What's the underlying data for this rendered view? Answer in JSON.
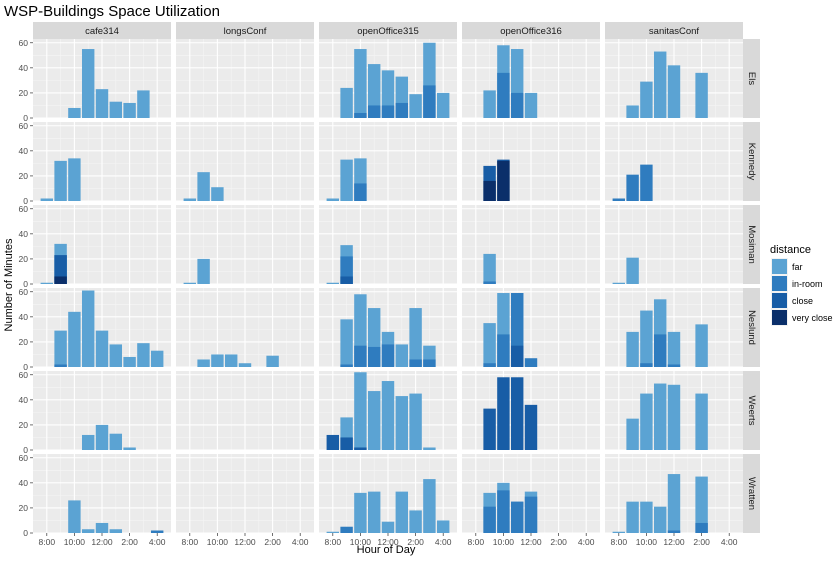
{
  "chart_data": {
    "type": "bar",
    "title": "WSP-Buildings Space Utilization",
    "xlabel": "Hour of Day",
    "ylabel": "Number of Minutes",
    "xlim": [
      7,
      17
    ],
    "ylim": [
      0,
      63
    ],
    "x_ticks": [
      8,
      10,
      12,
      14,
      16
    ],
    "x_tick_labels": [
      "8:00",
      "10:00",
      "12:00",
      "2:00",
      "4:00"
    ],
    "y_ticks": [
      0,
      20,
      40,
      60
    ],
    "y_tick_labels": [
      "0",
      "20",
      "40",
      "60"
    ],
    "facet_columns": [
      "cafe314",
      "longsConf",
      "openOffice315",
      "openOffice316",
      "sanitasConf"
    ],
    "facet_rows": [
      "Els",
      "Kennedy",
      "Mosiman",
      "Neslund",
      "Weerts",
      "Wratten"
    ],
    "legend": {
      "title": "distance",
      "position": "right",
      "entries": [
        {
          "label": "far",
          "color": "#5ba3d3"
        },
        {
          "label": "in-room",
          "color": "#2f7cbf"
        },
        {
          "label": "close",
          "color": "#185da6"
        },
        {
          "label": "very close",
          "color": "#0b2f6a"
        }
      ]
    },
    "panels": [
      {
        "row": "Els",
        "col": "cafe314",
        "bars": [
          [
            10,
            0,
            0,
            0,
            8
          ],
          [
            11,
            0,
            0,
            0,
            55
          ],
          [
            12,
            0,
            0,
            0,
            23
          ],
          [
            13,
            0,
            0,
            0,
            13
          ],
          [
            14,
            0,
            0,
            0,
            12
          ],
          [
            15,
            0,
            0,
            0,
            22
          ]
        ]
      },
      {
        "row": "Els",
        "col": "longsConf",
        "bars": []
      },
      {
        "row": "Els",
        "col": "openOffice315",
        "bars": [
          [
            9,
            0,
            0,
            0,
            24
          ],
          [
            10,
            0,
            0,
            4,
            55
          ],
          [
            11,
            0,
            0,
            10,
            43
          ],
          [
            12,
            0,
            0,
            10,
            38
          ],
          [
            13,
            0,
            0,
            12,
            33
          ],
          [
            14,
            0,
            0,
            0,
            19
          ],
          [
            15,
            0,
            0,
            26,
            60
          ],
          [
            16,
            0,
            0,
            0,
            20
          ]
        ]
      },
      {
        "row": "Els",
        "col": "openOffice316",
        "bars": [
          [
            9,
            0,
            0,
            0,
            22
          ],
          [
            10,
            0,
            0,
            36,
            58
          ],
          [
            11,
            0,
            0,
            20,
            55
          ],
          [
            12,
            0,
            0,
            0,
            20
          ]
        ]
      },
      {
        "row": "Els",
        "col": "sanitasConf",
        "bars": [
          [
            9,
            0,
            0,
            0,
            10
          ],
          [
            10,
            0,
            0,
            0,
            29
          ],
          [
            11,
            0,
            0,
            0,
            53
          ],
          [
            12,
            0,
            0,
            0,
            42
          ],
          [
            14,
            0,
            0,
            0,
            36
          ]
        ]
      },
      {
        "row": "Kennedy",
        "col": "cafe314",
        "bars": [
          [
            8,
            0,
            0,
            0,
            2
          ],
          [
            9,
            0,
            0,
            0,
            32
          ],
          [
            10,
            0,
            0,
            0,
            34
          ]
        ]
      },
      {
        "row": "Kennedy",
        "col": "longsConf",
        "bars": [
          [
            8,
            0,
            0,
            0,
            2
          ],
          [
            9,
            0,
            0,
            0,
            23
          ],
          [
            10,
            0,
            0,
            0,
            11
          ]
        ]
      },
      {
        "row": "Kennedy",
        "col": "openOffice315",
        "bars": [
          [
            8,
            0,
            0,
            0,
            2
          ],
          [
            9,
            0,
            0,
            0,
            33
          ],
          [
            10,
            0,
            0,
            14,
            34
          ]
        ]
      },
      {
        "row": "Kennedy",
        "col": "openOffice316",
        "bars": [
          [
            9,
            16,
            28,
            0,
            0
          ],
          [
            10,
            32,
            33,
            0,
            0
          ]
        ]
      },
      {
        "row": "Kennedy",
        "col": "sanitasConf",
        "bars": [
          [
            8,
            0,
            0,
            2,
            0
          ],
          [
            9,
            0,
            0,
            21,
            0
          ],
          [
            10,
            0,
            0,
            29,
            0
          ]
        ]
      },
      {
        "row": "Mosiman",
        "col": "cafe314",
        "bars": [
          [
            8,
            0,
            0,
            0,
            1
          ],
          [
            9,
            6,
            23,
            23,
            32
          ]
        ]
      },
      {
        "row": "Mosiman",
        "col": "longsConf",
        "bars": [
          [
            8,
            0,
            0,
            0,
            1
          ],
          [
            9,
            0,
            0,
            0,
            20
          ]
        ]
      },
      {
        "row": "Mosiman",
        "col": "openOffice315",
        "bars": [
          [
            8,
            0,
            0,
            0,
            1
          ],
          [
            9,
            0,
            6,
            22,
            31
          ]
        ]
      },
      {
        "row": "Mosiman",
        "col": "openOffice316",
        "bars": [
          [
            9,
            0,
            0,
            2,
            24
          ]
        ]
      },
      {
        "row": "Mosiman",
        "col": "sanitasConf",
        "bars": [
          [
            8,
            0,
            0,
            0,
            1
          ],
          [
            9,
            0,
            0,
            0,
            21
          ]
        ]
      },
      {
        "row": "Neslund",
        "col": "cafe314",
        "bars": [
          [
            9,
            0,
            0,
            2,
            29
          ],
          [
            10,
            0,
            0,
            0,
            44
          ],
          [
            11,
            0,
            0,
            0,
            61
          ],
          [
            12,
            0,
            0,
            0,
            29
          ],
          [
            13,
            0,
            0,
            0,
            18
          ],
          [
            14,
            0,
            0,
            0,
            8
          ],
          [
            15,
            0,
            0,
            0,
            19
          ],
          [
            16,
            0,
            0,
            0,
            13
          ]
        ]
      },
      {
        "row": "Neslund",
        "col": "longsConf",
        "bars": [
          [
            9,
            0,
            0,
            0,
            6
          ],
          [
            10,
            0,
            0,
            0,
            10
          ],
          [
            11,
            0,
            0,
            0,
            10
          ],
          [
            12,
            0,
            0,
            0,
            3
          ],
          [
            14,
            0,
            0,
            0,
            9
          ]
        ]
      },
      {
        "row": "Neslund",
        "col": "openOffice315",
        "bars": [
          [
            9,
            0,
            0,
            2,
            38
          ],
          [
            10,
            0,
            0,
            17,
            58
          ],
          [
            11,
            0,
            0,
            16,
            47
          ],
          [
            12,
            0,
            0,
            18,
            28
          ],
          [
            13,
            0,
            0,
            0,
            18
          ],
          [
            14,
            0,
            0,
            6,
            47
          ],
          [
            15,
            0,
            0,
            6,
            17
          ]
        ]
      },
      {
        "row": "Neslund",
        "col": "openOffice316",
        "bars": [
          [
            9,
            0,
            0,
            3,
            35
          ],
          [
            10,
            0,
            0,
            26,
            59
          ],
          [
            11,
            0,
            17,
            59,
            59
          ],
          [
            12,
            0,
            0,
            7,
            0
          ]
        ]
      },
      {
        "row": "Neslund",
        "col": "sanitasConf",
        "bars": [
          [
            9,
            0,
            0,
            0,
            28
          ],
          [
            10,
            0,
            0,
            3,
            45
          ],
          [
            11,
            0,
            0,
            26,
            54
          ],
          [
            12,
            0,
            0,
            2,
            28
          ],
          [
            14,
            0,
            0,
            0,
            34
          ]
        ]
      },
      {
        "row": "Weerts",
        "col": "cafe314",
        "bars": [
          [
            11,
            0,
            0,
            0,
            12
          ],
          [
            12,
            0,
            0,
            0,
            20
          ],
          [
            13,
            0,
            0,
            0,
            13
          ],
          [
            14,
            0,
            0,
            0,
            2
          ]
        ]
      },
      {
        "row": "Weerts",
        "col": "longsConf",
        "bars": []
      },
      {
        "row": "Weerts",
        "col": "openOffice315",
        "bars": [
          [
            8,
            0,
            12,
            0,
            0
          ],
          [
            9,
            0,
            10,
            0,
            26
          ],
          [
            10,
            0,
            2,
            0,
            62
          ],
          [
            11,
            0,
            0,
            0,
            47
          ],
          [
            12,
            0,
            0,
            0,
            55
          ],
          [
            13,
            0,
            0,
            0,
            43
          ],
          [
            14,
            0,
            0,
            0,
            45
          ],
          [
            15,
            0,
            0,
            0,
            2
          ]
        ]
      },
      {
        "row": "Weerts",
        "col": "openOffice316",
        "bars": [
          [
            9,
            0,
            33,
            0,
            0
          ],
          [
            10,
            0,
            58,
            0,
            0
          ],
          [
            11,
            0,
            58,
            0,
            0
          ],
          [
            12,
            0,
            36,
            0,
            0
          ]
        ]
      },
      {
        "row": "Weerts",
        "col": "sanitasConf",
        "bars": [
          [
            9,
            0,
            0,
            0,
            25
          ],
          [
            10,
            0,
            0,
            0,
            45
          ],
          [
            11,
            0,
            0,
            0,
            53
          ],
          [
            12,
            0,
            0,
            0,
            52
          ],
          [
            14,
            0,
            0,
            0,
            45
          ]
        ]
      },
      {
        "row": "Wratten",
        "col": "cafe314",
        "bars": [
          [
            10,
            0,
            0,
            0,
            26
          ],
          [
            11,
            0,
            0,
            0,
            3
          ],
          [
            12,
            0,
            0,
            0,
            8
          ],
          [
            13,
            0,
            0,
            0,
            3
          ],
          [
            16,
            0,
            0,
            2,
            0
          ]
        ]
      },
      {
        "row": "Wratten",
        "col": "longsConf",
        "bars": []
      },
      {
        "row": "Wratten",
        "col": "openOffice315",
        "bars": [
          [
            8,
            0,
            0,
            0,
            1
          ],
          [
            9,
            0,
            0,
            5,
            0
          ],
          [
            10,
            0,
            0,
            0,
            32
          ],
          [
            11,
            0,
            0,
            0,
            33
          ],
          [
            12,
            0,
            0,
            0,
            9
          ],
          [
            13,
            0,
            0,
            0,
            33
          ],
          [
            14,
            0,
            0,
            0,
            18
          ],
          [
            15,
            0,
            0,
            0,
            43
          ],
          [
            16,
            0,
            0,
            0,
            10
          ]
        ]
      },
      {
        "row": "Wratten",
        "col": "openOffice316",
        "bars": [
          [
            9,
            0,
            0,
            21,
            32
          ],
          [
            10,
            0,
            0,
            34,
            40
          ],
          [
            11,
            0,
            0,
            25,
            25
          ],
          [
            12,
            0,
            0,
            29,
            33
          ]
        ]
      },
      {
        "row": "Wratten",
        "col": "sanitasConf",
        "bars": [
          [
            8,
            0,
            0,
            0,
            1
          ],
          [
            9,
            0,
            0,
            0,
            25
          ],
          [
            10,
            0,
            0,
            0,
            25
          ],
          [
            11,
            0,
            0,
            0,
            21
          ],
          [
            12,
            0,
            0,
            2,
            47
          ],
          [
            14,
            0,
            0,
            8,
            45
          ]
        ]
      }
    ]
  }
}
